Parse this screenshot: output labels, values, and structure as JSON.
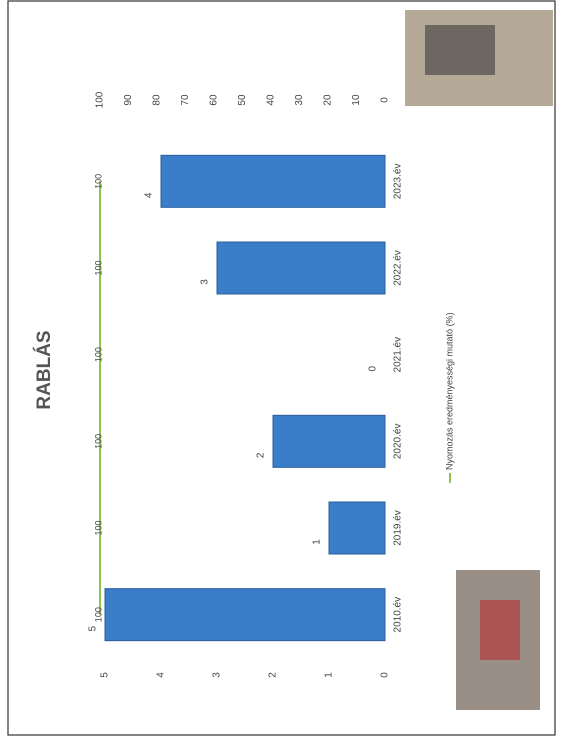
{
  "chart_data": {
    "type": "bar",
    "title": "RABLÁS",
    "categories": [
      "2010.év",
      "2019.év",
      "2020.év",
      "2021.év",
      "2022.év",
      "2023.év"
    ],
    "series": [
      {
        "type": "bar",
        "color": "#3a7dc9",
        "values": [
          5,
          1,
          2,
          0,
          3,
          4
        ]
      },
      {
        "type": "line",
        "name": "Nyomozás eredményességi mutató (%)",
        "color": "#8dc44e",
        "axis": "y2",
        "values": [
          100,
          100,
          100,
          100,
          100,
          100
        ]
      }
    ],
    "ylim": [
      0,
      5
    ],
    "yticks": [
      0,
      1,
      2,
      3,
      4,
      5
    ],
    "y2lim": [
      0,
      100
    ],
    "y2ticks": [
      0,
      10,
      20,
      30,
      40,
      50,
      60,
      70,
      80,
      90,
      100
    ],
    "legend": "bottom"
  }
}
